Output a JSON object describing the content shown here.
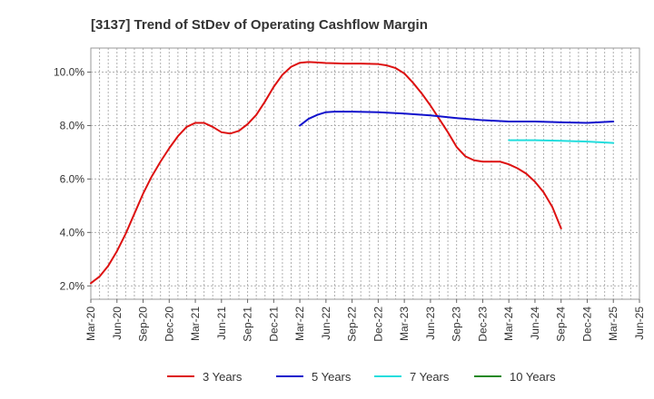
{
  "chart_data": {
    "type": "line",
    "title": "[3137]  Trend of StDev of Operating Cashflow Margin",
    "xlabel": "",
    "ylabel": "",
    "ylim": [
      1.5,
      10.9
    ],
    "xlim": [
      "2020-03",
      "2025-06"
    ],
    "grid": true,
    "legend_position": "bottom",
    "y_ticks": [
      "2.0%",
      "4.0%",
      "6.0%",
      "8.0%",
      "10.0%"
    ],
    "x_ticks": [
      "Mar-20",
      "Jun-20",
      "Sep-20",
      "Dec-20",
      "Mar-21",
      "Jun-21",
      "Sep-21",
      "Dec-21",
      "Mar-22",
      "Jun-22",
      "Sep-22",
      "Dec-22",
      "Mar-23",
      "Jun-23",
      "Sep-23",
      "Dec-23",
      "Mar-24",
      "Jun-24",
      "Sep-24",
      "Dec-24",
      "Mar-25",
      "Jun-25"
    ],
    "series": [
      {
        "name": "3 Years",
        "color": "#dd1111",
        "points": [
          [
            "2020-03",
            2.1
          ],
          [
            "2020-04",
            2.35
          ],
          [
            "2020-05",
            2.75
          ],
          [
            "2020-06",
            3.3
          ],
          [
            "2020-07",
            3.95
          ],
          [
            "2020-08",
            4.7
          ],
          [
            "2020-09",
            5.45
          ],
          [
            "2020-10",
            6.1
          ],
          [
            "2020-11",
            6.65
          ],
          [
            "2020-12",
            7.15
          ],
          [
            "2021-01",
            7.6
          ],
          [
            "2021-02",
            7.95
          ],
          [
            "2021-03",
            8.1
          ],
          [
            "2021-04",
            8.1
          ],
          [
            "2021-05",
            7.95
          ],
          [
            "2021-06",
            7.75
          ],
          [
            "2021-07",
            7.7
          ],
          [
            "2021-08",
            7.8
          ],
          [
            "2021-09",
            8.05
          ],
          [
            "2021-10",
            8.4
          ],
          [
            "2021-11",
            8.9
          ],
          [
            "2021-12",
            9.45
          ],
          [
            "2022-01",
            9.9
          ],
          [
            "2022-02",
            10.2
          ],
          [
            "2022-03",
            10.35
          ],
          [
            "2022-04",
            10.38
          ],
          [
            "2022-05",
            10.36
          ],
          [
            "2022-06",
            10.34
          ],
          [
            "2022-07",
            10.33
          ],
          [
            "2022-08",
            10.32
          ],
          [
            "2022-09",
            10.32
          ],
          [
            "2022-10",
            10.32
          ],
          [
            "2022-11",
            10.31
          ],
          [
            "2022-12",
            10.3
          ],
          [
            "2023-01",
            10.25
          ],
          [
            "2023-02",
            10.15
          ],
          [
            "2023-03",
            9.95
          ],
          [
            "2023-04",
            9.6
          ],
          [
            "2023-05",
            9.2
          ],
          [
            "2023-06",
            8.75
          ],
          [
            "2023-07",
            8.25
          ],
          [
            "2023-08",
            7.75
          ],
          [
            "2023-09",
            7.2
          ],
          [
            "2023-10",
            6.85
          ],
          [
            "2023-11",
            6.7
          ],
          [
            "2023-12",
            6.65
          ],
          [
            "2024-01",
            6.65
          ],
          [
            "2024-02",
            6.65
          ],
          [
            "2024-03",
            6.55
          ],
          [
            "2024-04",
            6.4
          ],
          [
            "2024-05",
            6.2
          ],
          [
            "2024-06",
            5.9
          ],
          [
            "2024-07",
            5.5
          ],
          [
            "2024-08",
            4.95
          ],
          [
            "2024-09",
            4.15
          ]
        ]
      },
      {
        "name": "5 Years",
        "color": "#1111cc",
        "points": [
          [
            "2022-03",
            8.0
          ],
          [
            "2022-04",
            8.25
          ],
          [
            "2022-05",
            8.4
          ],
          [
            "2022-06",
            8.5
          ],
          [
            "2022-07",
            8.52
          ],
          [
            "2022-09",
            8.52
          ],
          [
            "2022-12",
            8.5
          ],
          [
            "2023-03",
            8.45
          ],
          [
            "2023-06",
            8.38
          ],
          [
            "2023-09",
            8.28
          ],
          [
            "2023-12",
            8.2
          ],
          [
            "2024-03",
            8.15
          ],
          [
            "2024-06",
            8.15
          ],
          [
            "2024-09",
            8.12
          ],
          [
            "2024-12",
            8.1
          ],
          [
            "2025-03",
            8.15
          ]
        ]
      },
      {
        "name": "7 Years",
        "color": "#22dddd",
        "points": [
          [
            "2024-03",
            7.45
          ],
          [
            "2024-06",
            7.45
          ],
          [
            "2024-09",
            7.43
          ],
          [
            "2024-12",
            7.4
          ],
          [
            "2025-03",
            7.35
          ]
        ]
      },
      {
        "name": "10 Years",
        "color": "#228822",
        "points": []
      }
    ]
  }
}
